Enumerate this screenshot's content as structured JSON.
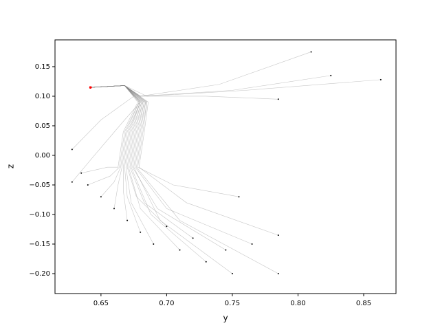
{
  "chart_data": {
    "type": "line",
    "xlabel": "y",
    "ylabel": "z",
    "xlim": [
      0.615,
      0.8746
    ],
    "ylim": [
      -0.2337,
      0.1953
    ],
    "xticks": [
      0.65,
      {
        "value": 0.7,
        "label": "0.70"
      },
      0.75,
      {
        "value": 0.8,
        "label": "0.80"
      },
      0.85
    ],
    "yticks": [
      {
        "value": -0.2,
        "label": "−0.20"
      },
      {
        "value": -0.15,
        "label": "−0.15"
      },
      {
        "value": -0.1,
        "label": "−0.10"
      },
      {
        "value": -0.05,
        "label": "−0.05"
      },
      {
        "value": 0,
        "label": "0.00"
      },
      {
        "value": 0.05,
        "label": "0.05"
      },
      {
        "value": 0.1,
        "label": "0.10"
      },
      0.15
    ],
    "line_color": "#808080",
    "start_color": "#000000",
    "end_color": "#ff0000",
    "series": [
      {
        "x": [
          0.635,
          0.655,
          0.663,
          0.667,
          0.678,
          0.668,
          0.642
        ],
        "values": [
          -0.03,
          -0.02,
          -0.02,
          0.04,
          0.09,
          0.118,
          0.115
        ]
      },
      {
        "x": [
          0.64,
          0.657,
          0.664,
          0.668,
          0.679,
          0.668,
          0.642
        ],
        "values": [
          -0.05,
          -0.035,
          -0.02,
          0.04,
          0.09,
          0.118,
          0.115
        ]
      },
      {
        "x": [
          0.65,
          0.66,
          0.665,
          0.669,
          0.679,
          0.668,
          0.642
        ],
        "values": [
          -0.07,
          -0.045,
          -0.02,
          0.04,
          0.09,
          0.118,
          0.115
        ]
      },
      {
        "x": [
          0.66,
          0.663,
          0.666,
          0.67,
          0.68,
          0.668,
          0.642
        ],
        "values": [
          -0.09,
          -0.05,
          -0.02,
          0.04,
          0.09,
          0.118,
          0.115
        ]
      },
      {
        "x": [
          0.67,
          0.667,
          0.667,
          0.671,
          0.68,
          0.668,
          0.642
        ],
        "values": [
          -0.11,
          -0.06,
          -0.02,
          0.04,
          0.09,
          0.118,
          0.115
        ]
      },
      {
        "x": [
          0.68,
          0.67,
          0.668,
          0.672,
          0.68,
          0.668,
          0.642
        ],
        "values": [
          -0.13,
          -0.07,
          -0.02,
          0.04,
          0.09,
          0.118,
          0.115
        ]
      },
      {
        "x": [
          0.69,
          0.673,
          0.669,
          0.673,
          0.681,
          0.668,
          0.642
        ],
        "values": [
          -0.15,
          -0.08,
          -0.02,
          0.04,
          0.09,
          0.118,
          0.115
        ]
      },
      {
        "x": [
          0.7,
          0.677,
          0.67,
          0.674,
          0.681,
          0.668,
          0.642
        ],
        "values": [
          -0.12,
          -0.07,
          -0.02,
          0.04,
          0.09,
          0.118,
          0.115
        ]
      },
      {
        "x": [
          0.71,
          0.68,
          0.671,
          0.675,
          0.682,
          0.668,
          0.642
        ],
        "values": [
          -0.16,
          -0.09,
          -0.02,
          0.04,
          0.09,
          0.118,
          0.115
        ]
      },
      {
        "x": [
          0.72,
          0.683,
          0.672,
          0.676,
          0.682,
          0.668,
          0.642
        ],
        "values": [
          -0.14,
          -0.08,
          -0.02,
          0.04,
          0.09,
          0.118,
          0.115
        ]
      },
      {
        "x": [
          0.73,
          0.688,
          0.673,
          0.677,
          0.683,
          0.668,
          0.642
        ],
        "values": [
          -0.18,
          -0.1,
          -0.02,
          0.04,
          0.09,
          0.118,
          0.115
        ]
      },
      {
        "x": [
          0.745,
          0.693,
          0.674,
          0.678,
          0.683,
          0.668,
          0.642
        ],
        "values": [
          -0.16,
          -0.09,
          -0.02,
          0.04,
          0.09,
          0.118,
          0.115
        ]
      },
      {
        "x": [
          0.75,
          0.695,
          0.675,
          0.679,
          0.684,
          0.668,
          0.642
        ],
        "values": [
          -0.2,
          -0.11,
          -0.02,
          0.04,
          0.09,
          0.118,
          0.115
        ]
      },
      {
        "x": [
          0.765,
          0.7,
          0.676,
          0.68,
          0.684,
          0.668,
          0.642
        ],
        "values": [
          -0.15,
          -0.09,
          -0.02,
          0.04,
          0.09,
          0.118,
          0.115
        ]
      },
      {
        "x": [
          0.785,
          0.71,
          0.677,
          0.681,
          0.685,
          0.668,
          0.642
        ],
        "values": [
          -0.2,
          -0.11,
          -0.02,
          0.04,
          0.09,
          0.118,
          0.115
        ]
      },
      {
        "x": [
          0.755,
          0.705,
          0.678,
          0.682,
          0.685,
          0.668,
          0.642
        ],
        "values": [
          -0.07,
          -0.05,
          -0.02,
          0.04,
          0.09,
          0.118,
          0.115
        ]
      },
      {
        "x": [
          0.785,
          0.715,
          0.679,
          0.683,
          0.686,
          0.668,
          0.642
        ],
        "values": [
          -0.135,
          -0.08,
          -0.02,
          0.04,
          0.09,
          0.118,
          0.115
        ]
      },
      {
        "x": [
          0.81,
          0.74,
          0.68,
          0.668,
          0.642
        ],
        "values": [
          0.175,
          0.12,
          0.1,
          0.118,
          0.115
        ]
      },
      {
        "x": [
          0.825,
          0.75,
          0.68,
          0.668,
          0.642
        ],
        "values": [
          0.135,
          0.11,
          0.1,
          0.118,
          0.115
        ]
      },
      {
        "x": [
          0.863,
          0.76,
          0.685,
          0.668,
          0.642
        ],
        "values": [
          0.128,
          0.11,
          0.1,
          0.118,
          0.115
        ]
      },
      {
        "x": [
          0.785,
          0.73,
          0.68,
          0.668,
          0.642
        ],
        "values": [
          0.095,
          0.1,
          0.1,
          0.118,
          0.115
        ]
      },
      {
        "x": [
          0.628,
          0.65,
          0.675,
          0.668,
          0.642
        ],
        "values": [
          0.01,
          0.06,
          0.1,
          0.118,
          0.115
        ]
      },
      {
        "x": [
          0.628,
          0.645,
          0.668,
          0.68,
          0.668,
          0.642
        ],
        "values": [
          -0.045,
          0.0,
          0.06,
          0.09,
          0.118,
          0.115
        ]
      }
    ]
  }
}
